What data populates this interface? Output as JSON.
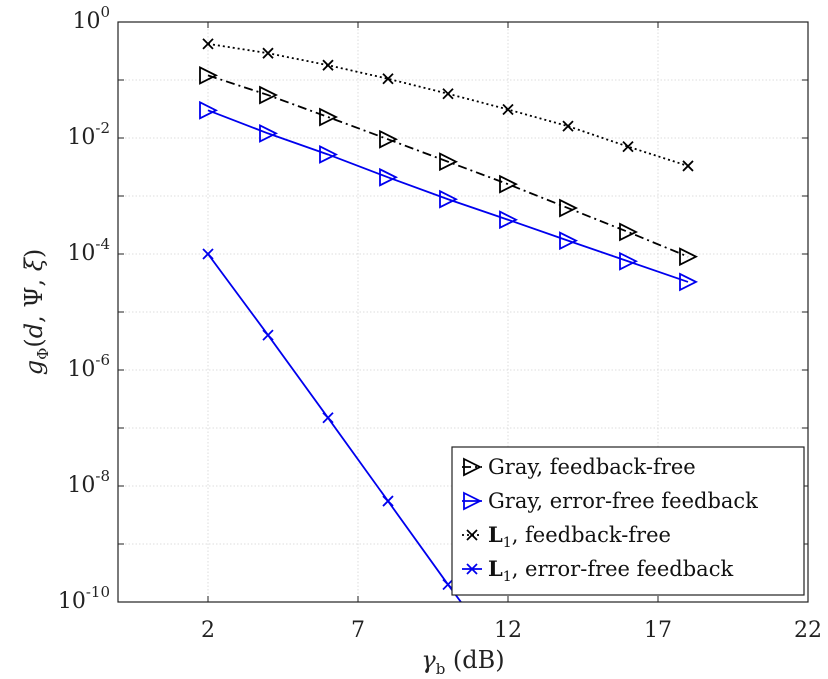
{
  "chart_data": {
    "type": "line",
    "xlabel": "γ_b (dB)",
    "ylabel": "g_Φ(d, Ψ, ξ)",
    "xlim": [
      -1,
      22
    ],
    "ylim": [
      1e-10,
      1
    ],
    "yscale": "log",
    "xticks": [
      2,
      7,
      12,
      17,
      22
    ],
    "yticks": [
      {
        "value": 1.0,
        "base": "10",
        "exp": "0"
      },
      {
        "value": 0.01,
        "base": "10",
        "exp": "-2"
      },
      {
        "value": 0.0001,
        "base": "10",
        "exp": "-4"
      },
      {
        "value": 1e-06,
        "base": "10",
        "exp": "-6"
      },
      {
        "value": 1e-08,
        "base": "10",
        "exp": "-8"
      },
      {
        "value": 1e-10,
        "base": "10",
        "exp": "-10"
      }
    ],
    "grid": true,
    "legend_position": "bottom-right",
    "series": [
      {
        "name": "Gray, feedback-free",
        "color": "#000000",
        "line": "dashdot",
        "marker": "triangle-right",
        "x": [
          2,
          4,
          6,
          8,
          10,
          12,
          14,
          16,
          18
        ],
        "y": [
          0.12,
          0.055,
          0.023,
          0.0095,
          0.0039,
          0.0016,
          0.00062,
          0.00024,
          9e-05
        ]
      },
      {
        "name": "Gray, error-free feedback",
        "color": "#0000ee",
        "line": "solid",
        "marker": "triangle-right",
        "x": [
          2,
          4,
          6,
          8,
          10,
          12,
          14,
          16,
          18
        ],
        "y": [
          0.03,
          0.012,
          0.0052,
          0.0021,
          0.00088,
          0.00039,
          0.00017,
          7.5e-05,
          3.3e-05
        ]
      },
      {
        "name": "L1, feedback-free",
        "color": "#000000",
        "line": "dotted",
        "marker": "x",
        "x": [
          2,
          4,
          6,
          8,
          10,
          12,
          14,
          16,
          18
        ],
        "y": [
          0.42,
          0.29,
          0.18,
          0.105,
          0.058,
          0.031,
          0.016,
          0.0071,
          0.0033
        ]
      },
      {
        "name": "L1, error-free feedback",
        "color": "#0000ee",
        "line": "solid",
        "marker": "x",
        "x": [
          2,
          4,
          6,
          8,
          10,
          11
        ],
        "y": [
          0.0001,
          4e-06,
          1.5e-07,
          5.5e-09,
          2e-10,
          4e-11
        ]
      }
    ],
    "legend": [
      {
        "prefix": "",
        "bold": "",
        "sub": "",
        "suffix": "Gray, feedback-free"
      },
      {
        "prefix": "",
        "bold": "",
        "sub": "",
        "suffix": "Gray, error-free feedback"
      },
      {
        "prefix": "",
        "bold": "L",
        "sub": "1",
        "suffix": ", feedback-free"
      },
      {
        "prefix": "",
        "bold": "L",
        "sub": "1",
        "suffix": ", error-free feedback"
      }
    ]
  }
}
